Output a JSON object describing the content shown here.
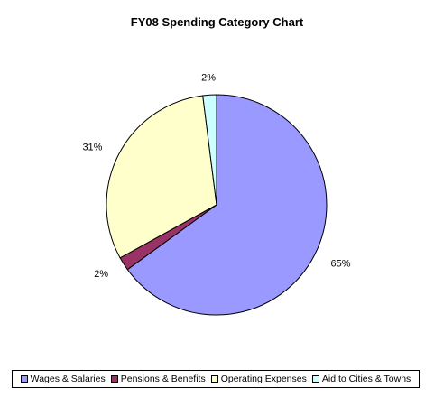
{
  "chart_data": {
    "type": "pie",
    "title": "FY08 Spending Category Chart",
    "slices": [
      {
        "label": "Wages & Salaries",
        "value": 65,
        "value_label": "65%",
        "color": "#9999ff"
      },
      {
        "label": "Pensions & Benefits",
        "value": 2,
        "value_label": "2%",
        "color": "#993366"
      },
      {
        "label": "Operating Expenses",
        "value": 31,
        "value_label": "31%",
        "color": "#ffffcc"
      },
      {
        "label": "Aid to Cities & Towns",
        "value": 2,
        "value_label": "2%",
        "color": "#ccffff"
      }
    ],
    "legend_position": "bottom"
  }
}
